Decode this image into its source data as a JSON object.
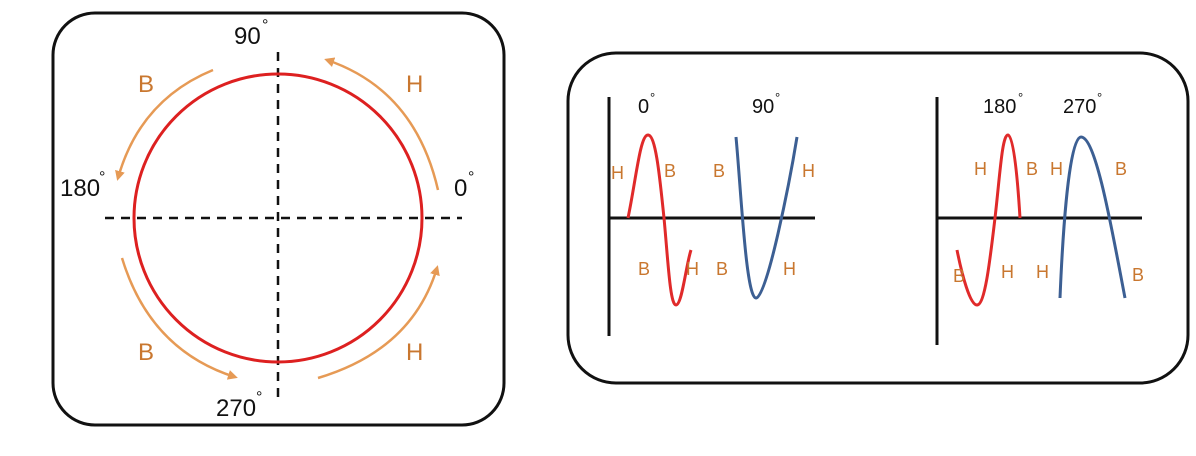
{
  "colors": {
    "circle": "#dd2020",
    "arrow": "#e69a55",
    "label_orange": "#c9772f",
    "wave_red": "#e02a2a",
    "wave_blue": "#3c5f93",
    "axis": "#111111"
  },
  "left_panel": {
    "angle_labels": {
      "a90": "90",
      "a180": "180",
      "a0": "0",
      "a270": "270"
    },
    "degree_mark": "°",
    "arc_labels": {
      "top_left": "B",
      "top_right": "H",
      "bottom_left": "B",
      "bottom_right": "H"
    }
  },
  "right_panel": {
    "plot1": {
      "header_0": "0",
      "header_90": "90",
      "labels": [
        "H",
        "B",
        "B",
        "H",
        "B",
        "H",
        "B",
        "H"
      ]
    },
    "plot2": {
      "header_180": "180",
      "header_270": "270",
      "labels": [
        "H",
        "B",
        "H",
        "B",
        "B",
        "H",
        "H",
        "B"
      ]
    }
  }
}
